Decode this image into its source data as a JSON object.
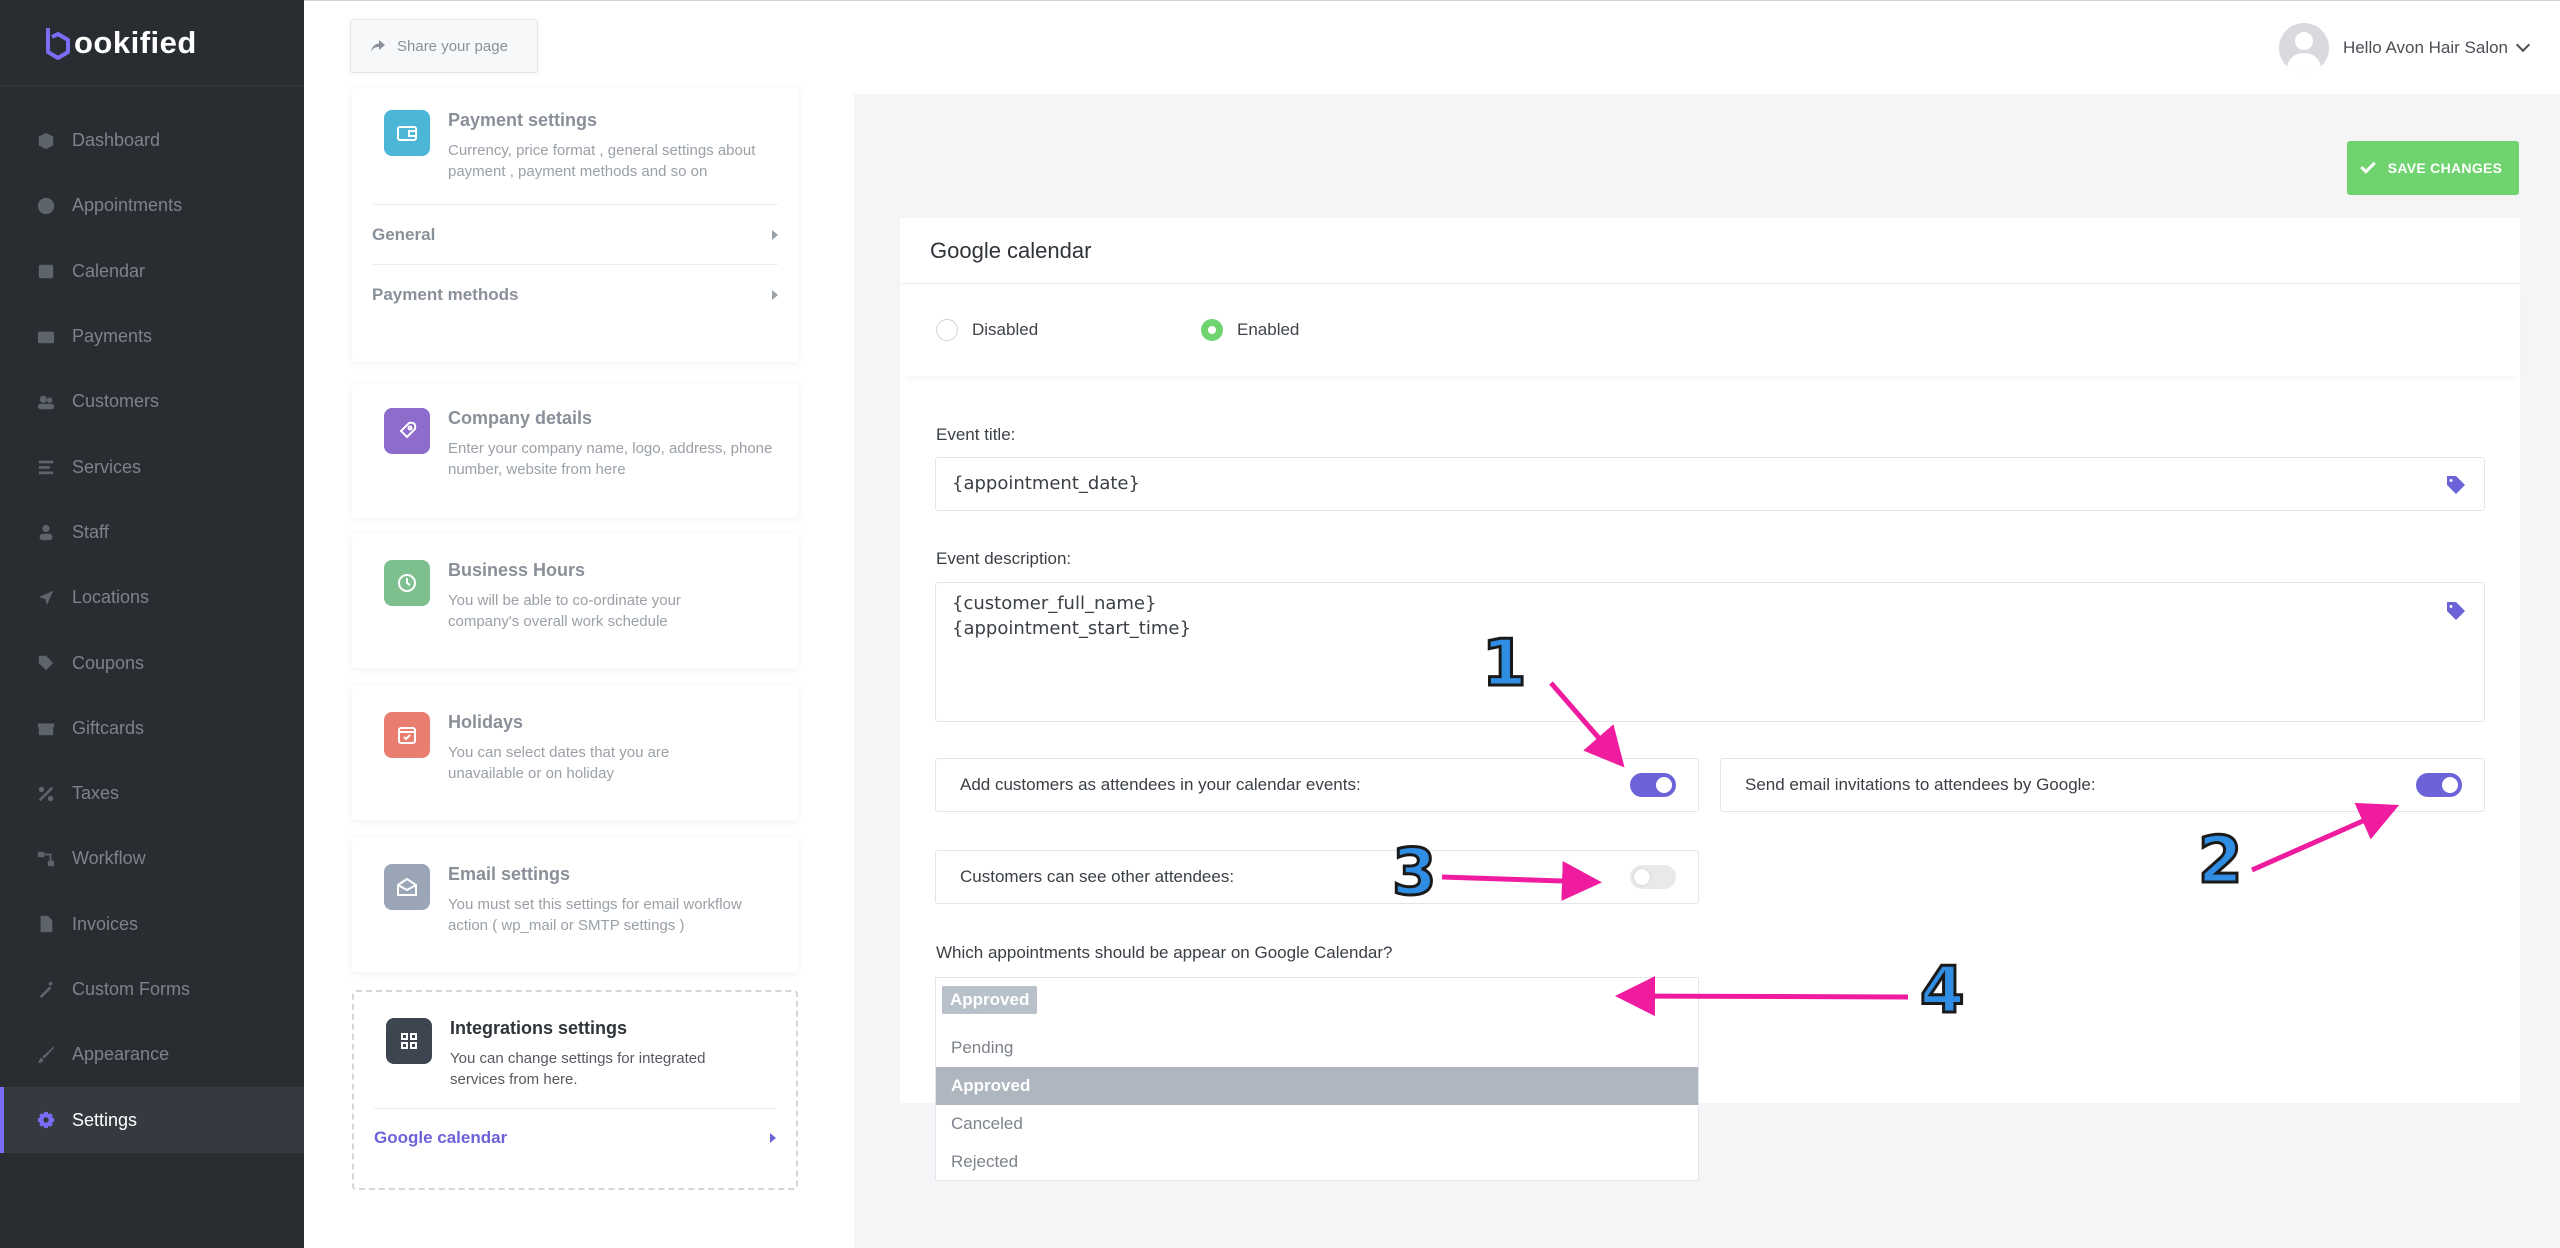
{
  "brand": {
    "name": "ookified",
    "accent": "#7b6ef6"
  },
  "sidebar": {
    "items": [
      {
        "label": "Dashboard",
        "icon": "cube-icon"
      },
      {
        "label": "Appointments",
        "icon": "clock-icon"
      },
      {
        "label": "Calendar",
        "icon": "calendar-icon"
      },
      {
        "label": "Payments",
        "icon": "credit-card-icon"
      },
      {
        "label": "Customers",
        "icon": "users-icon"
      },
      {
        "label": "Services",
        "icon": "list-icon"
      },
      {
        "label": "Staff",
        "icon": "user-icon"
      },
      {
        "label": "Locations",
        "icon": "location-arrow-icon"
      },
      {
        "label": "Coupons",
        "icon": "tag-icon"
      },
      {
        "label": "Giftcards",
        "icon": "gift-icon"
      },
      {
        "label": "Taxes",
        "icon": "percent-icon"
      },
      {
        "label": "Workflow",
        "icon": "workflow-icon"
      },
      {
        "label": "Invoices",
        "icon": "file-icon"
      },
      {
        "label": "Custom Forms",
        "icon": "magic-icon"
      },
      {
        "label": "Appearance",
        "icon": "brush-icon"
      },
      {
        "label": "Settings",
        "icon": "gear-icon",
        "active": true
      }
    ]
  },
  "header": {
    "share_label": "Share your page",
    "greeting": "Hello Avon Hair Salon"
  },
  "settings_list": {
    "payment": {
      "title": "Payment settings",
      "desc": "Currency, price format , general settings about payment , payment methods and so on",
      "subs": [
        "General",
        "Payment methods"
      ]
    },
    "company": {
      "title": "Company details",
      "desc": "Enter your company name, logo, address, phone number, website from here"
    },
    "hours": {
      "title": "Business Hours",
      "desc": "You will be able to co-ordinate your company's overall work schedule"
    },
    "holidays": {
      "title": "Holidays",
      "desc": "You can select dates that you are unavailable or on holiday"
    },
    "email": {
      "title": "Email settings",
      "desc": "You must set this settings for email workflow action ( wp_mail or SMTP settings )"
    },
    "integrations": {
      "title": "Integrations settings",
      "desc": "You can change settings for integrated services from here.",
      "sub": "Google calendar"
    }
  },
  "main": {
    "save_label": "SAVE CHANGES",
    "panel_title": "Google calendar",
    "radio_disabled": "Disabled",
    "radio_enabled": "Enabled",
    "event_title_label": "Event title:",
    "event_title_value": "{appointment_date}",
    "event_desc_label": "Event description:",
    "event_desc_line1": "{customer_full_name}",
    "event_desc_line2": "{appointment_start_time}",
    "toggle_attendees": "Add customers as attendees in your calendar events:",
    "toggle_invitations": "Send email invitations to attendees by Google:",
    "toggle_see_others": "Customers can see other attendees:",
    "which_label": "Which appointments should be appear on Google Calendar?",
    "selected_chip": "Approved",
    "options": [
      "Pending",
      "Approved",
      "Canceled",
      "Rejected"
    ]
  },
  "annotations": {
    "n1": "1",
    "n2": "2",
    "n3": "3",
    "n4": "4",
    "arrow_color": "#ef1ca0"
  }
}
